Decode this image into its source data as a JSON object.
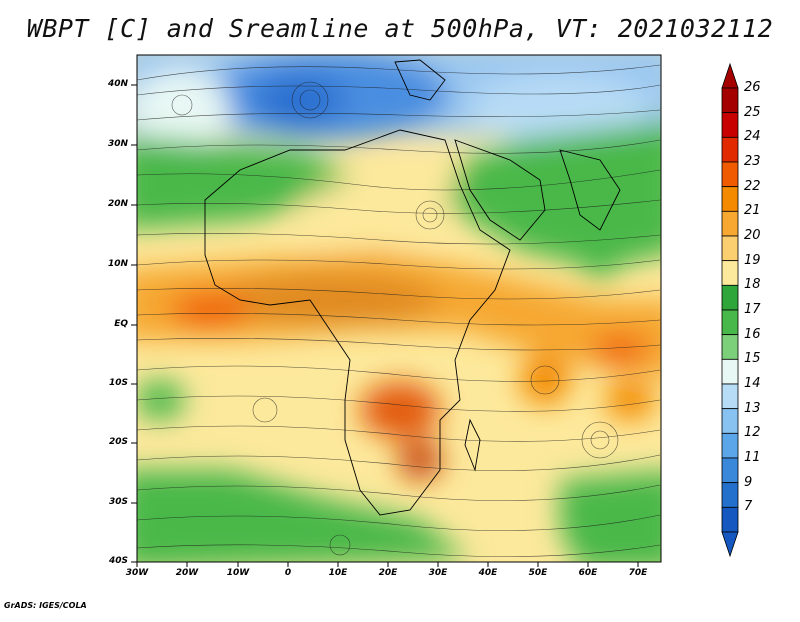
{
  "title": "WBPT [C] and Sreamline at 500hPa, VT: 2021032112",
  "lat_labels": [
    "40N",
    "30N",
    "20N",
    "10N",
    "EQ",
    "10S",
    "20S",
    "30S",
    "40S"
  ],
  "lon_labels": [
    "30W",
    "20W",
    "10W",
    "0",
    "10E",
    "20E",
    "30E",
    "40E",
    "50E",
    "60E",
    "70E"
  ],
  "colorbar": {
    "labels": [
      "26",
      "25",
      "24",
      "23",
      "22",
      "21",
      "20",
      "19",
      "18",
      "17",
      "16",
      "15",
      "14",
      "13",
      "12",
      "11",
      "9",
      "7"
    ],
    "colors": [
      "#a50000",
      "#c80000",
      "#e22a00",
      "#f05a00",
      "#f38a00",
      "#f6a830",
      "#fbcf70",
      "#fde99c",
      "#2ea63a",
      "#48b84a",
      "#7cd07a",
      "#e8f8f4",
      "#b7dcf6",
      "#88c2f0",
      "#5aa6e8",
      "#3988da",
      "#2370cc",
      "#1558c0"
    ]
  },
  "credit": "GrADS: IGES/COLA"
}
